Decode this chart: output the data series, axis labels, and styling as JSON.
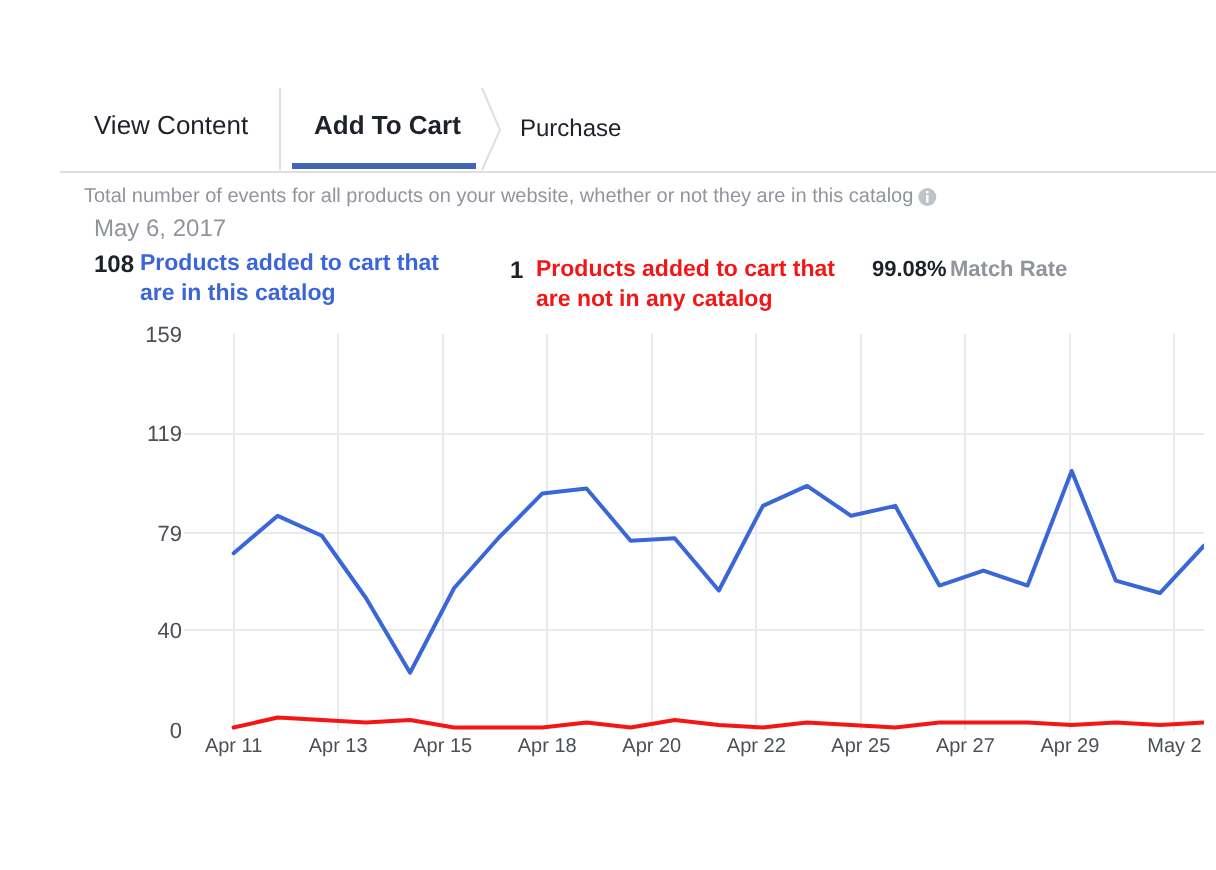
{
  "chart_data": {
    "type": "line",
    "subtitle": "Total number of events for all products on your website, whether or not they are in this catalog",
    "annotations": [
      "View Content",
      "Add To Cart",
      "Purchase",
      "May 6, 2017",
      "108",
      "1",
      "99.08%",
      "Match Rate"
    ],
    "x": [
      "2017-04-11",
      "2017-04-12",
      "2017-04-13",
      "2017-04-14",
      "2017-04-15",
      "2017-04-16",
      "2017-04-17",
      "2017-04-18",
      "2017-04-19",
      "2017-04-20",
      "2017-04-21",
      "2017-04-22",
      "2017-04-23",
      "2017-04-24",
      "2017-04-25",
      "2017-04-26",
      "2017-04-27",
      "2017-04-28",
      "2017-04-29",
      "2017-04-30",
      "2017-05-01",
      "2017-05-02",
      "2017-05-03"
    ],
    "xlim": [
      "2017-04-09T21:00",
      "2017-05-03"
    ],
    "xticks": [
      {
        "value": "2017-04-11",
        "label": "Apr 11"
      },
      {
        "value": "2017-04-13T08:53",
        "label": "Apr 13"
      },
      {
        "value": "2017-04-15T17:46",
        "label": "Apr 15"
      },
      {
        "value": "2017-04-18T02:38",
        "label": "Apr 18"
      },
      {
        "value": "2017-04-20T11:31",
        "label": "Apr 20"
      },
      {
        "value": "2017-04-22T20:24",
        "label": "Apr 22"
      },
      {
        "value": "2017-04-25T05:17",
        "label": "Apr 25"
      },
      {
        "value": "2017-04-27T14:10",
        "label": "Apr 27"
      },
      {
        "value": "2017-04-29T23:02",
        "label": "Apr 29"
      },
      {
        "value": "2017-05-02T07:55",
        "label": "May 2"
      }
    ],
    "ylim": [
      0,
      159
    ],
    "yticks": [
      0,
      40,
      79,
      119,
      159
    ],
    "series": [
      {
        "name": "Products added to cart that are in this catalog",
        "color": "#3a66d8",
        "values": [
          71,
          86,
          78,
          53,
          23,
          57,
          77,
          95,
          97,
          76,
          77,
          56,
          90,
          98,
          86,
          90,
          58,
          64,
          58,
          104,
          60,
          55,
          74
        ]
      },
      {
        "name": "Products added to cart that are not in any catalog",
        "color": "#f41616",
        "values": [
          1,
          5,
          4,
          3,
          4,
          1,
          1,
          1,
          3,
          1,
          4,
          2,
          1,
          3,
          2,
          1,
          3,
          3,
          3,
          2,
          3,
          2,
          3
        ]
      }
    ],
    "grid": true,
    "legend": "top",
    "line_style": "solid"
  }
}
